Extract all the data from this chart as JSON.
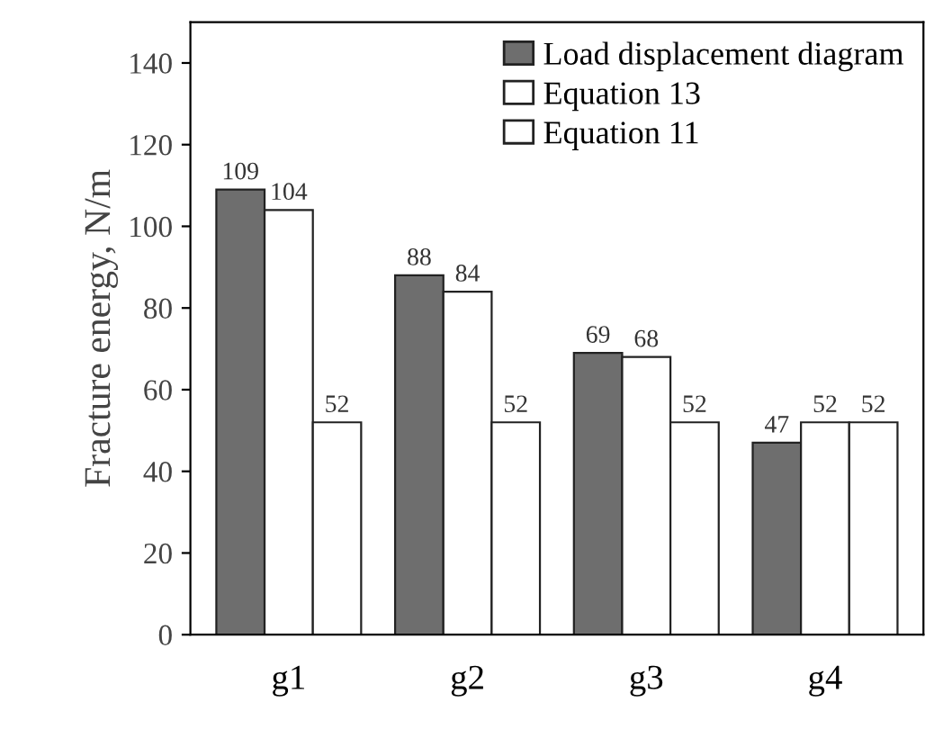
{
  "chart_data": {
    "type": "bar",
    "ylabel": "Fracture energy, N/m",
    "categories": [
      "g1",
      "g2",
      "g3",
      "g4"
    ],
    "series": [
      {
        "name": "Load displacement diagram",
        "color": "#6e6e6e",
        "values": [
          109,
          88,
          69,
          47
        ]
      },
      {
        "name": "Equation 13",
        "color": "#ffffff",
        "values": [
          104,
          84,
          68,
          52
        ]
      },
      {
        "name": "Equation 11",
        "color": "#ffffff",
        "values": [
          52,
          52,
          52,
          52
        ]
      }
    ],
    "ylim": [
      0,
      150
    ],
    "yticks": [
      0,
      20,
      40,
      60,
      80,
      100,
      120,
      140
    ],
    "data_labels": true,
    "legend": "top right",
    "grid": false
  }
}
